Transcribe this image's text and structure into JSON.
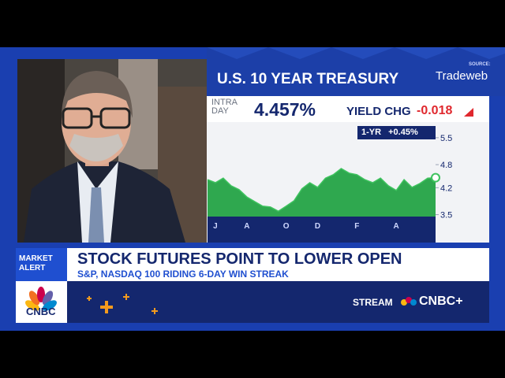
{
  "header": {
    "title": "U.S. 10 YEAR TREASURY",
    "source_label": "SOURCE:",
    "source": "Tradeweb"
  },
  "quote": {
    "intraday_label": "INTRA DAY",
    "yield": "4.457%",
    "change_label": "YIELD CHG",
    "change": "-0.018"
  },
  "chart_data": {
    "type": "area",
    "color": "#2fa84f",
    "period_label": "1-YR",
    "period_change": "+0.45%",
    "categories": [
      null,
      "J",
      null,
      null,
      null,
      "A",
      null,
      null,
      null,
      null,
      "O",
      null,
      null,
      null,
      "D",
      null,
      null,
      null,
      null,
      "F",
      null,
      null,
      null,
      null,
      "A",
      null,
      null,
      null,
      null,
      null
    ],
    "values": [
      4.41,
      4.33,
      4.45,
      4.25,
      4.15,
      3.96,
      3.84,
      3.72,
      3.7,
      3.59,
      3.72,
      3.86,
      4.17,
      4.33,
      4.21,
      4.45,
      4.54,
      4.7,
      4.58,
      4.54,
      4.41,
      4.33,
      4.45,
      4.25,
      4.13,
      4.41,
      4.21,
      4.31,
      4.45,
      4.46
    ],
    "ylim": [
      3.45,
      5.6
    ],
    "yticks": [
      3.5,
      4.2,
      4.8,
      5.5
    ]
  },
  "banner": {
    "tag": "MARKET ALERT",
    "headline": "STOCK FUTURES POINT TO LOWER OPEN",
    "subhead": "S&P, NASDAQ 100 RIDING 6-DAY WIN STREAK",
    "stream_label": "STREAM",
    "stream_brand": "CNBC+",
    "logo": "CNBC"
  }
}
